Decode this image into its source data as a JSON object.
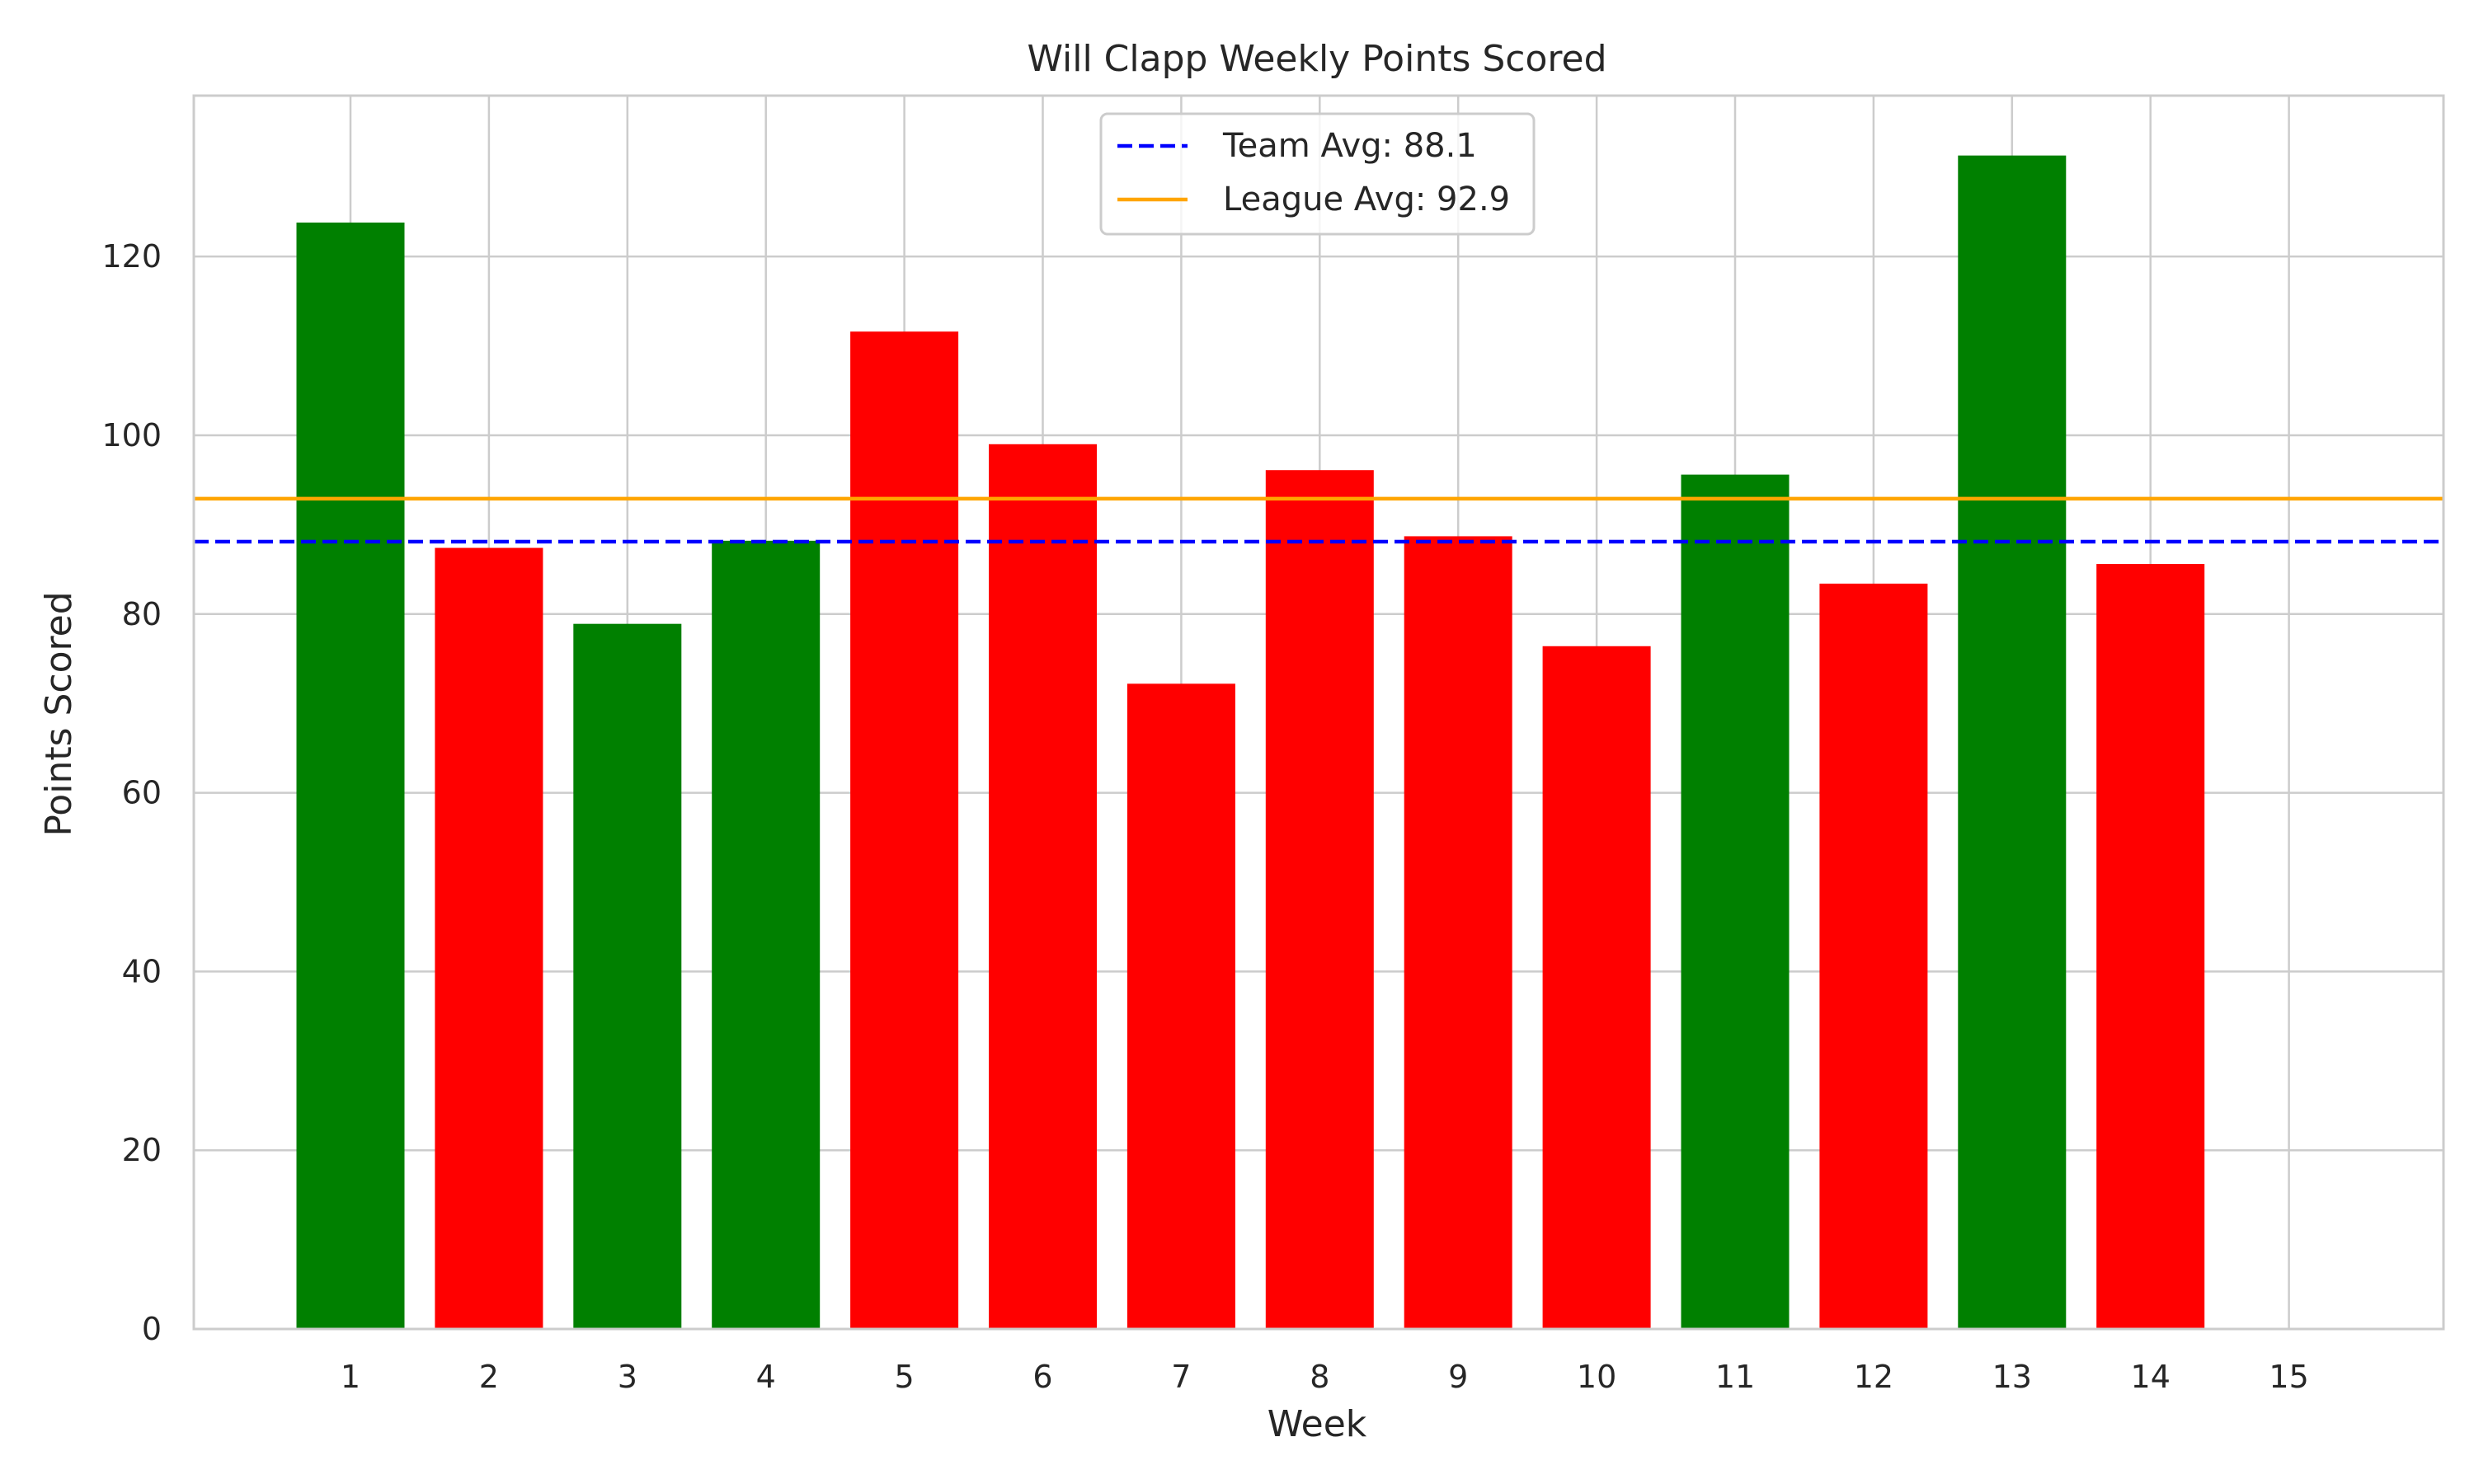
{
  "chart_data": {
    "type": "bar",
    "title": "Will Clapp Weekly Points Scored",
    "xlabel": "Week",
    "ylabel": "Points Scored",
    "categories": [
      "1",
      "2",
      "3",
      "4",
      "5",
      "6",
      "7",
      "8",
      "9",
      "10",
      "11",
      "12",
      "13",
      "14",
      "15"
    ],
    "values": [
      123.8,
      87.4,
      78.9,
      88.2,
      111.6,
      99.0,
      72.2,
      96.1,
      88.7,
      76.4,
      95.6,
      83.4,
      131.3,
      85.6,
      0
    ],
    "bar_colors": [
      "#008000",
      "#ff0000",
      "#008000",
      "#008000",
      "#ff0000",
      "#ff0000",
      "#ff0000",
      "#ff0000",
      "#ff0000",
      "#ff0000",
      "#008000",
      "#ff0000",
      "#008000",
      "#ff0000",
      "#ff0000"
    ],
    "yticks": [
      0,
      20,
      40,
      60,
      80,
      100,
      120
    ],
    "ylim": [
      0,
      138
    ],
    "grid": true,
    "reference_lines": [
      {
        "label": "Team Avg: 88.1",
        "value": 88.1,
        "color": "#0000ff",
        "style": "dashed"
      },
      {
        "label": "League Avg: 92.9",
        "value": 92.9,
        "color": "#ffa500",
        "style": "solid"
      }
    ],
    "legend_position": "upper-center"
  }
}
